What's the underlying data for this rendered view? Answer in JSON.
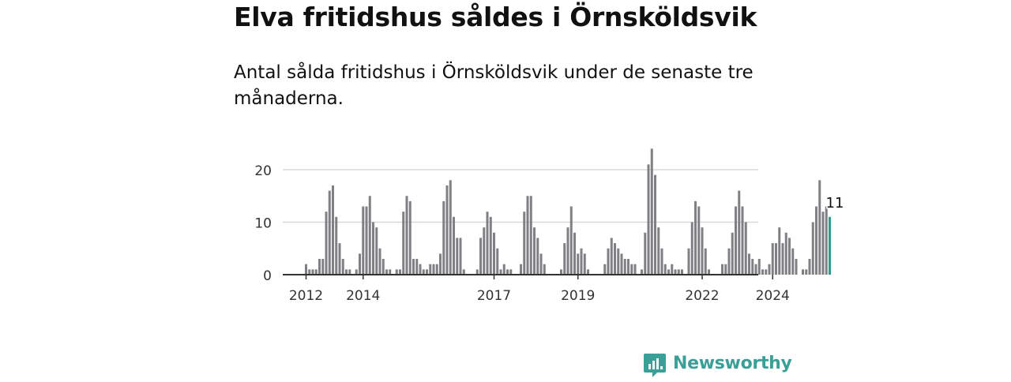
{
  "title": "Elva fritidshus såldes i Örnsköldsvik",
  "subtitle": "Antal sålda fritidshus i Örnsköldsvik under de senaste tre månaderna.",
  "brand": {
    "name": "Newsworthy",
    "color": "#3a9f96"
  },
  "colors": {
    "bar": "#808084",
    "highlight": "#2a9d91",
    "grid": "#d8d8d8",
    "axis": "#333333"
  },
  "chart_data": {
    "type": "bar",
    "x_start": "2012-01",
    "values": [
      2,
      1,
      1,
      1,
      3,
      3,
      12,
      16,
      17,
      11,
      6,
      3,
      1,
      1,
      0,
      1,
      4,
      13,
      13,
      15,
      10,
      9,
      5,
      3,
      1,
      1,
      0,
      1,
      1,
      12,
      15,
      14,
      3,
      3,
      2,
      1,
      1,
      2,
      2,
      2,
      4,
      14,
      17,
      18,
      11,
      7,
      7,
      1,
      0,
      0,
      0,
      1,
      7,
      9,
      12,
      11,
      8,
      5,
      1,
      2,
      1,
      1,
      0,
      0,
      2,
      12,
      15,
      15,
      9,
      7,
      4,
      2,
      0,
      0,
      0,
      0,
      1,
      6,
      9,
      13,
      8,
      4,
      5,
      4,
      1,
      0,
      0,
      0,
      0,
      2,
      5,
      7,
      6,
      5,
      4,
      3,
      3,
      2,
      2,
      0,
      1,
      8,
      21,
      24,
      19,
      9,
      5,
      2,
      1,
      2,
      1,
      1,
      1,
      0,
      5,
      10,
      14,
      13,
      9,
      5,
      1,
      0,
      0,
      0,
      2,
      2,
      5,
      8,
      13,
      16,
      13,
      10,
      4,
      3,
      2,
      3,
      1,
      1,
      2,
      6,
      6,
      9,
      6,
      8,
      7,
      5,
      3,
      0,
      1,
      1,
      3,
      10,
      13,
      18,
      12,
      13,
      11
    ],
    "highlight_last": true,
    "last_value_label": "11",
    "y_ticks": [
      0,
      10,
      20
    ],
    "ylim": [
      0,
      24
    ],
    "x_tick_labels": [
      {
        "label": "2012",
        "index": 0
      },
      {
        "label": "2014",
        "index": 17
      },
      {
        "label": "2017",
        "index": 56
      },
      {
        "label": "2019",
        "index": 81
      },
      {
        "label": "2022",
        "index": 118
      },
      {
        "label": "2024",
        "index": 139
      }
    ],
    "grid": true
  }
}
